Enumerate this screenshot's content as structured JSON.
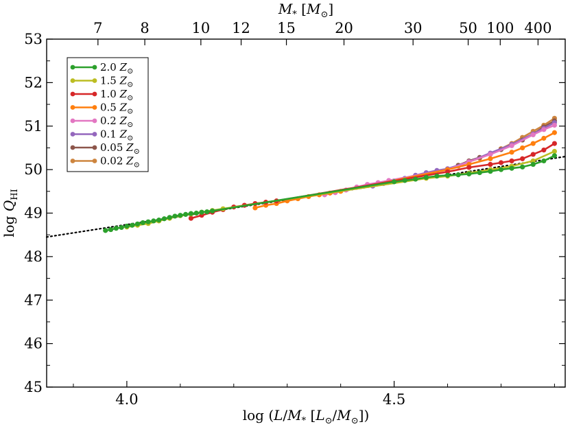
{
  "chart_data": {
    "type": "line",
    "xlabel": "log (L/M* [L⊙/M⊙])",
    "ylabel": "log QHI",
    "top_axis_label": "M* [M⊙]",
    "xlim": [
      3.85,
      4.82
    ],
    "ylim": [
      45,
      53
    ],
    "x_ticks": [
      {
        "value": 4.0,
        "label": "4.0"
      },
      {
        "value": 4.5,
        "label": "4.5"
      }
    ],
    "y_ticks": [
      {
        "value": 45,
        "label": "45"
      },
      {
        "value": 46,
        "label": "46"
      },
      {
        "value": 47,
        "label": "47"
      },
      {
        "value": 48,
        "label": "48"
      },
      {
        "value": 49,
        "label": "49"
      },
      {
        "value": 50,
        "label": "50"
      },
      {
        "value": 51,
        "label": "51"
      },
      {
        "value": 52,
        "label": "52"
      },
      {
        "value": 53,
        "label": "53"
      }
    ],
    "top_ticks": [
      {
        "value": 3.946,
        "label": "7"
      },
      {
        "value": 4.0336,
        "label": "8"
      },
      {
        "value": 4.1385,
        "label": "10"
      },
      {
        "value": 4.2138,
        "label": "12"
      },
      {
        "value": 4.2985,
        "label": "15"
      },
      {
        "value": 4.4062,
        "label": "20"
      },
      {
        "value": 4.5354,
        "label": "30"
      },
      {
        "value": 4.6385,
        "label": "50"
      },
      {
        "value": 4.6985,
        "label": "100"
      },
      {
        "value": 4.7692,
        "label": "400"
      }
    ],
    "reference_line": {
      "style": "dotted",
      "x": [
        3.85,
        4.82
      ],
      "y": [
        48.45,
        50.3
      ]
    },
    "legend_position": "upper-left",
    "series": [
      {
        "name": "2.0 Z⊙",
        "color": "#2ca02c",
        "x": [
          3.96,
          3.97,
          3.98,
          3.99,
          4.0,
          4.01,
          4.02,
          4.03,
          4.04,
          4.05,
          4.06,
          4.07,
          4.08,
          4.09,
          4.1,
          4.11,
          4.12,
          4.13,
          4.14,
          4.15,
          4.16,
          4.5,
          4.52,
          4.54,
          4.56,
          4.58,
          4.6,
          4.62,
          4.64,
          4.66,
          4.68,
          4.7,
          4.72,
          4.74,
          4.76,
          4.78,
          4.8
        ],
        "y": [
          48.6,
          48.62,
          48.65,
          48.67,
          48.7,
          48.72,
          48.75,
          48.78,
          48.8,
          48.82,
          48.84,
          48.87,
          48.9,
          48.93,
          48.95,
          48.97,
          48.99,
          49.0,
          49.02,
          49.03,
          49.05,
          49.72,
          49.75,
          49.78,
          49.82,
          49.85,
          49.87,
          49.88,
          49.9,
          49.93,
          49.96,
          50.0,
          50.03,
          50.06,
          50.12,
          50.2,
          50.32
        ]
      },
      {
        "name": "1.5 Z⊙",
        "color": "#bcbd22",
        "x": [
          4.0,
          4.02,
          4.04,
          4.06,
          4.08,
          4.1,
          4.12,
          4.14,
          4.16,
          4.18,
          4.56,
          4.6,
          4.64,
          4.68,
          4.72,
          4.76,
          4.8
        ],
        "y": [
          48.68,
          48.72,
          48.76,
          48.82,
          48.88,
          48.94,
          48.98,
          49.02,
          49.06,
          49.1,
          49.8,
          49.85,
          49.92,
          50.0,
          50.08,
          50.2,
          50.42
        ]
      },
      {
        "name": "1.0 Z⊙",
        "color": "#d62728",
        "x": [
          4.12,
          4.14,
          4.16,
          4.18,
          4.2,
          4.22,
          4.24,
          4.26,
          4.28,
          4.6,
          4.64,
          4.68,
          4.7,
          4.72,
          4.74,
          4.76,
          4.78,
          4.8
        ],
        "y": [
          48.88,
          48.95,
          49.02,
          49.08,
          49.14,
          49.18,
          49.22,
          49.25,
          49.28,
          49.95,
          50.05,
          50.12,
          50.16,
          50.2,
          50.25,
          50.35,
          50.45,
          50.6
        ]
      },
      {
        "name": "0.5 Z⊙",
        "color": "#ff7f0e",
        "x": [
          4.24,
          4.26,
          4.28,
          4.3,
          4.32,
          4.34,
          4.36,
          4.38,
          4.4,
          4.6,
          4.64,
          4.68,
          4.72,
          4.74,
          4.76,
          4.78,
          4.8
        ],
        "y": [
          49.12,
          49.18,
          49.22,
          49.28,
          49.33,
          49.38,
          49.42,
          49.46,
          49.5,
          50.0,
          50.12,
          50.25,
          50.4,
          50.5,
          50.6,
          50.72,
          50.85
        ]
      },
      {
        "name": "0.2 Z⊙",
        "color": "#e377c2",
        "x": [
          4.37,
          4.39,
          4.41,
          4.43,
          4.45,
          4.47,
          4.49,
          4.6,
          4.64,
          4.68,
          4.72,
          4.76,
          4.78,
          4.8
        ],
        "y": [
          49.42,
          49.47,
          49.53,
          49.6,
          49.66,
          49.7,
          49.75,
          50.0,
          50.18,
          50.35,
          50.55,
          50.8,
          50.92,
          51.02
        ]
      },
      {
        "name": "0.1 Z⊙",
        "color": "#9467bd",
        "x": [
          4.46,
          4.48,
          4.5,
          4.52,
          4.54,
          4.56,
          4.58,
          4.6,
          4.64,
          4.68,
          4.72,
          4.76,
          4.78,
          4.8
        ],
        "y": [
          49.62,
          49.68,
          49.74,
          49.8,
          49.87,
          49.93,
          49.98,
          50.02,
          50.18,
          50.38,
          50.58,
          50.82,
          50.95,
          51.08
        ]
      },
      {
        "name": "0.05 Z⊙",
        "color": "#8c564b",
        "x": [
          4.62,
          4.64,
          4.66,
          4.68,
          4.7,
          4.72,
          4.74,
          4.76,
          4.78,
          4.8
        ],
        "y": [
          50.1,
          50.2,
          50.28,
          50.36,
          50.46,
          50.56,
          50.68,
          50.82,
          50.98,
          51.12
        ]
      },
      {
        "name": "0.02 Z⊙",
        "color": "#cd853f",
        "x": [
          4.62,
          4.64,
          4.66,
          4.68,
          4.7,
          4.72,
          4.74,
          4.76,
          4.78,
          4.8
        ],
        "y": [
          50.08,
          50.18,
          50.26,
          50.36,
          50.48,
          50.6,
          50.74,
          50.88,
          51.02,
          51.18
        ]
      }
    ]
  }
}
